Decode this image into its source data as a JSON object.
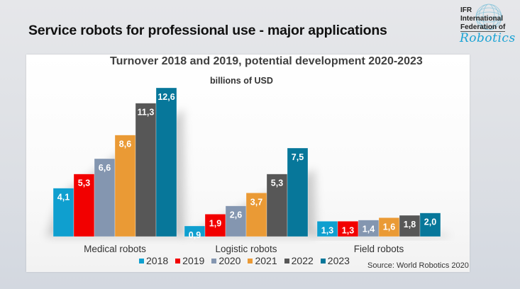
{
  "slide": {
    "title": "Service robots for professional use - major applications",
    "logo": {
      "line1": "IFR",
      "line2": "International",
      "line3": "Federation of",
      "line4": "Robotics"
    }
  },
  "chart_data": {
    "type": "bar",
    "title": "Turnover 2018 and 2019, potential development 2020-2023",
    "subtitle": "billions of USD",
    "xlabel": "",
    "ylabel": "",
    "ylim": [
      0,
      12.6
    ],
    "grid": false,
    "legend_position": "bottom",
    "categories": [
      "Medical robots",
      "Logistic robots",
      "Field robots"
    ],
    "series": [
      {
        "name": "2018",
        "color": "#0f9fcf",
        "values": [
          4.1,
          0.9,
          1.3
        ],
        "labels": [
          "4,1",
          "0,9",
          "1,3"
        ]
      },
      {
        "name": "2019",
        "color": "#f20000",
        "values": [
          5.3,
          1.9,
          1.3
        ],
        "labels": [
          "5,3",
          "1,9",
          "1,3"
        ]
      },
      {
        "name": "2020",
        "color": "#8496b0",
        "values": [
          6.6,
          2.6,
          1.4
        ],
        "labels": [
          "6,6",
          "2,6",
          "1,4"
        ]
      },
      {
        "name": "2021",
        "color": "#ea9a35",
        "values": [
          8.6,
          3.7,
          1.6
        ],
        "labels": [
          "8,6",
          "3,7",
          "1,6"
        ]
      },
      {
        "name": "2022",
        "color": "#575757",
        "values": [
          11.3,
          5.3,
          1.8
        ],
        "labels": [
          "11,3",
          "5,3",
          "1,8"
        ]
      },
      {
        "name": "2023",
        "color": "#07779a",
        "values": [
          12.6,
          7.5,
          2.0
        ],
        "labels": [
          "12,6",
          "7,5",
          "2,0"
        ]
      }
    ],
    "source": "Source: World Robotics 2020"
  }
}
